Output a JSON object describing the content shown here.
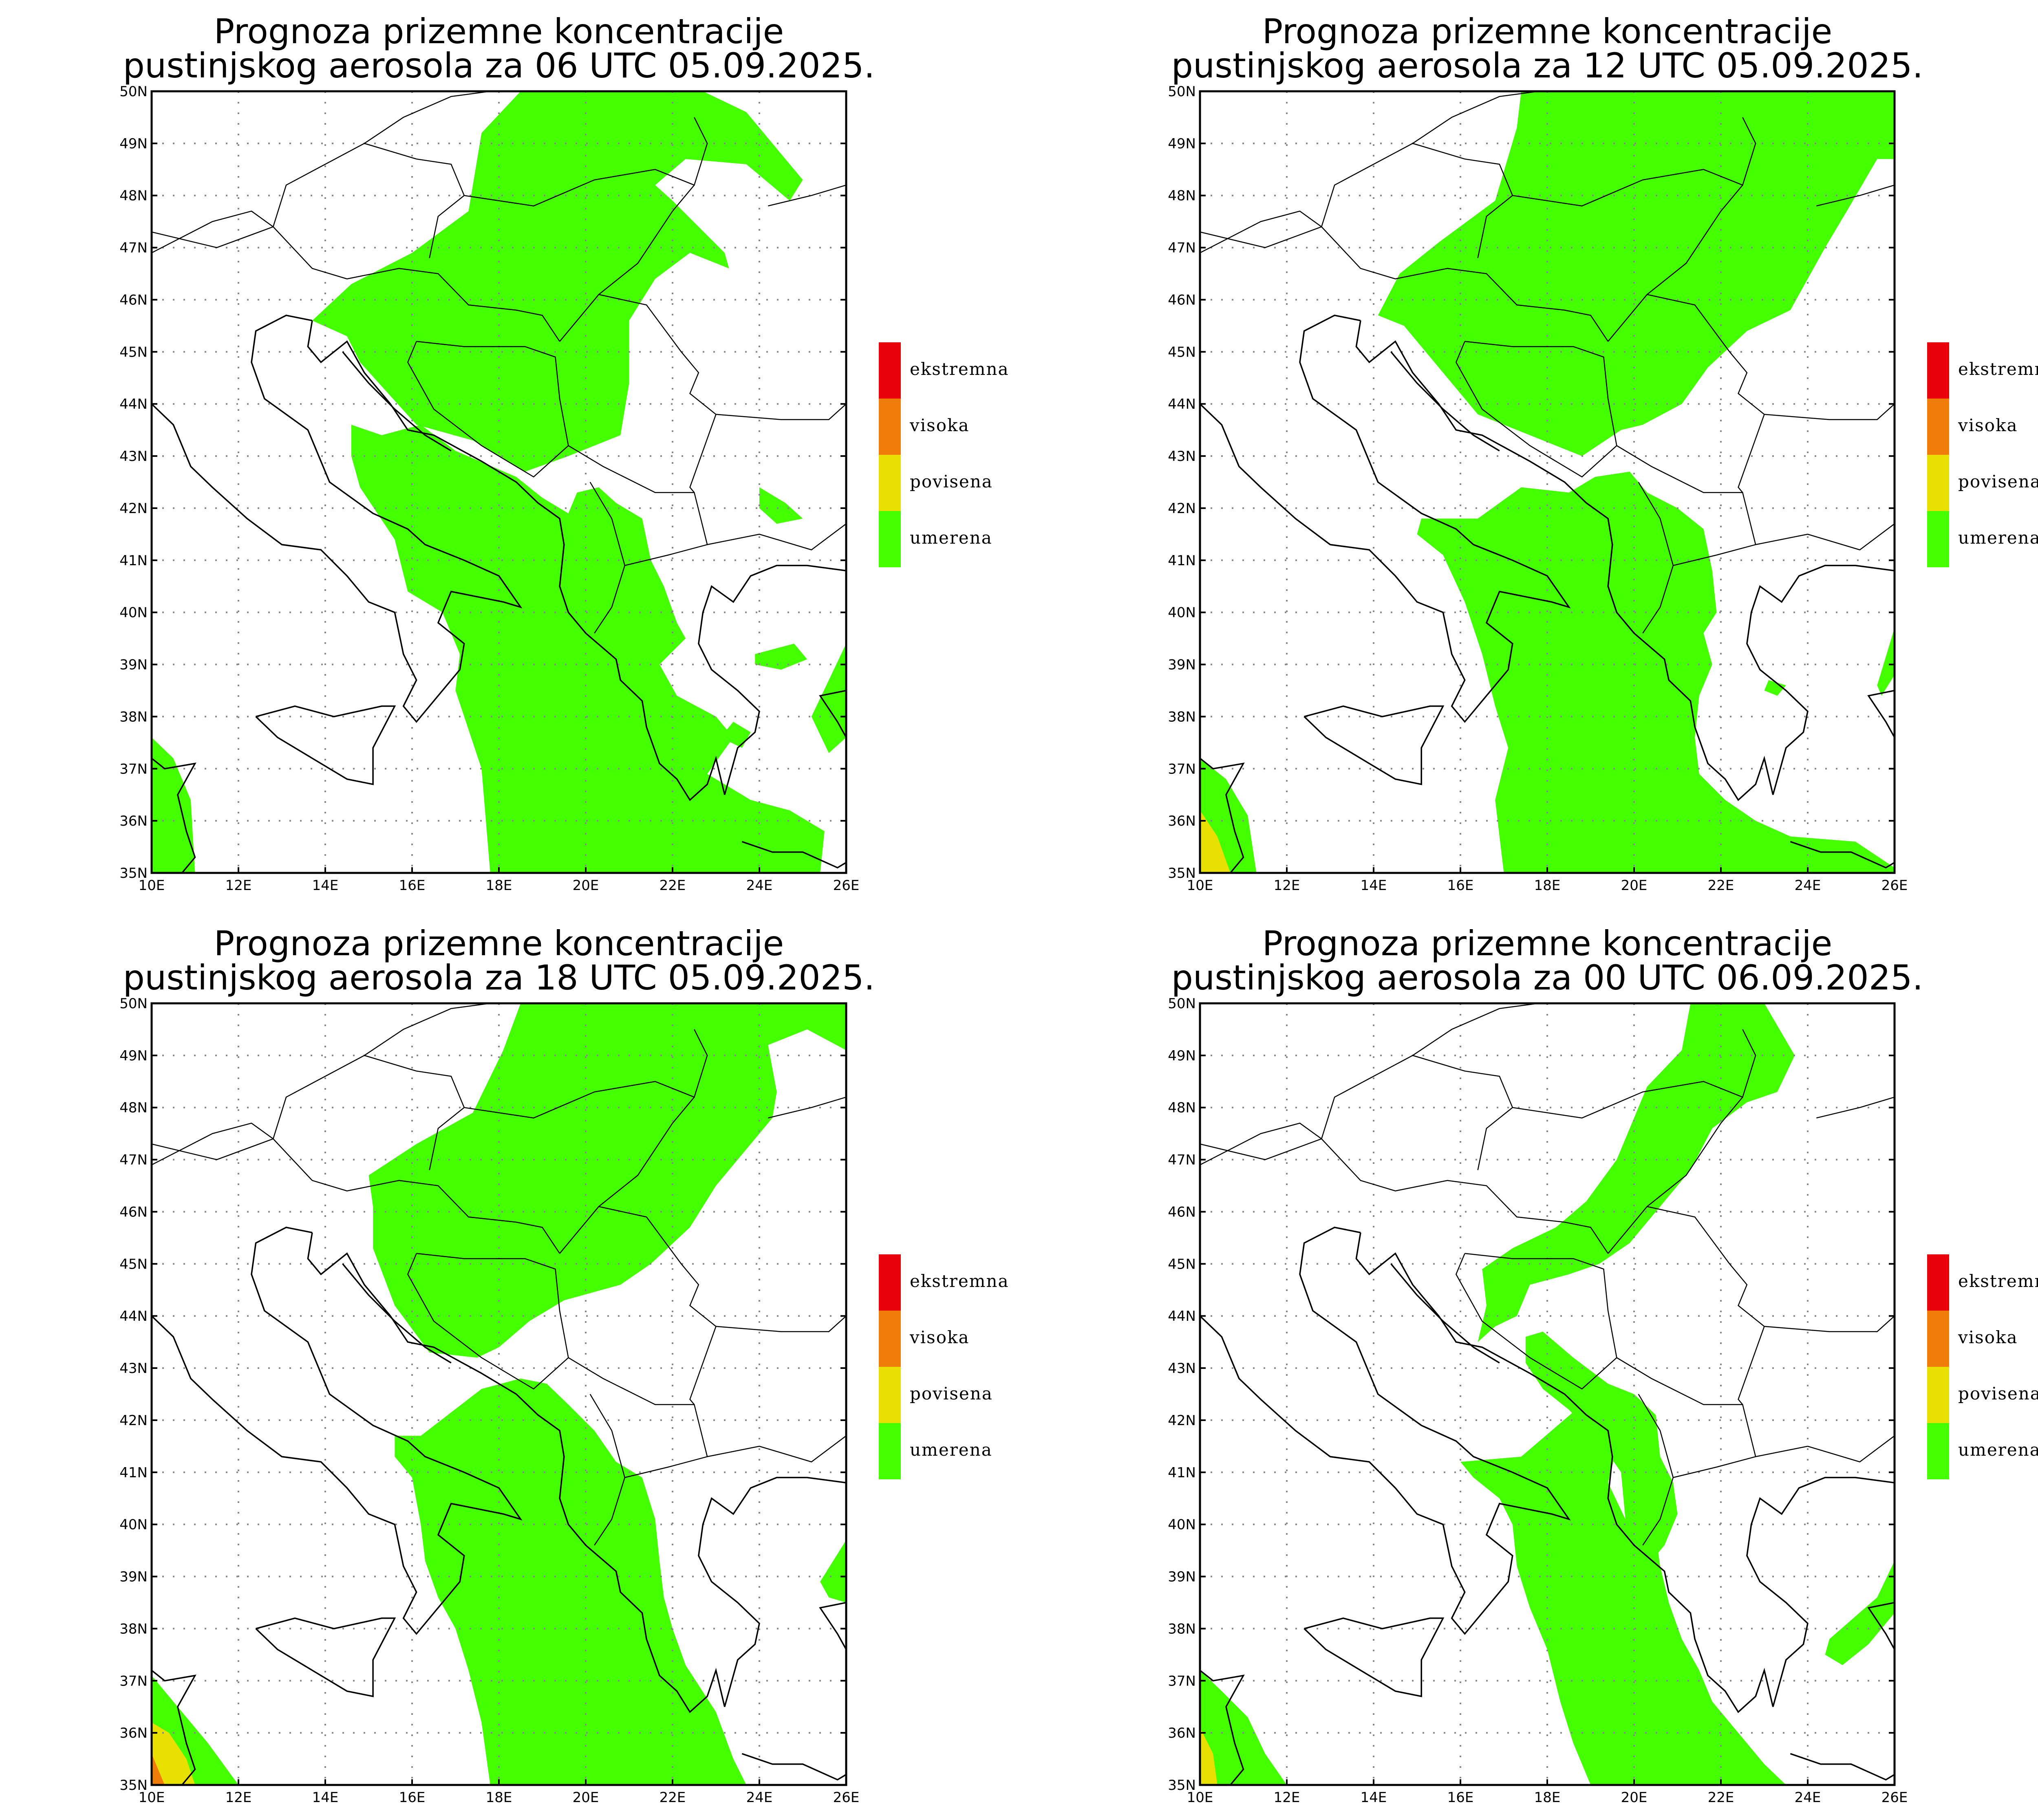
{
  "panels": [
    {
      "title_line1": "Prognoza prizemne koncentracije",
      "title_line2": "pustinjskog aerosola za 06 UTC 05.09.2025."
    },
    {
      "title_line1": "Prognoza prizemne koncentracije",
      "title_line2": "pustinjskog aerosola za 12 UTC 05.09.2025."
    },
    {
      "title_line1": "Prognoza prizemne koncentracije",
      "title_line2": "pustinjskog aerosola za 18 UTC 05.09.2025."
    },
    {
      "title_line1": "Prognoza prizemne koncentracije",
      "title_line2": "pustinjskog aerosola za 00 UTC 06.09.2025."
    }
  ],
  "lat_labels": [
    "50N",
    "49N",
    "48N",
    "47N",
    "46N",
    "45N",
    "44N",
    "43N",
    "42N",
    "41N",
    "40N",
    "39N",
    "38N",
    "37N",
    "36N",
    "35N"
  ],
  "lon_labels": [
    "10E",
    "12E",
    "14E",
    "16E",
    "18E",
    "20E",
    "22E",
    "24E",
    "26E"
  ],
  "legend": [
    {
      "label": "ekstremna",
      "color": "#e8000b"
    },
    {
      "label": "visoka",
      "color": "#f07d0a"
    },
    {
      "label": "povisena",
      "color": "#e8e000"
    },
    {
      "label": "umerena",
      "color": "#44ff00"
    }
  ],
  "colors": {
    "umerena": "#44ff00",
    "povisena": "#e8e000",
    "visoka": "#f07d0a",
    "ekstremna": "#e8000b"
  }
}
